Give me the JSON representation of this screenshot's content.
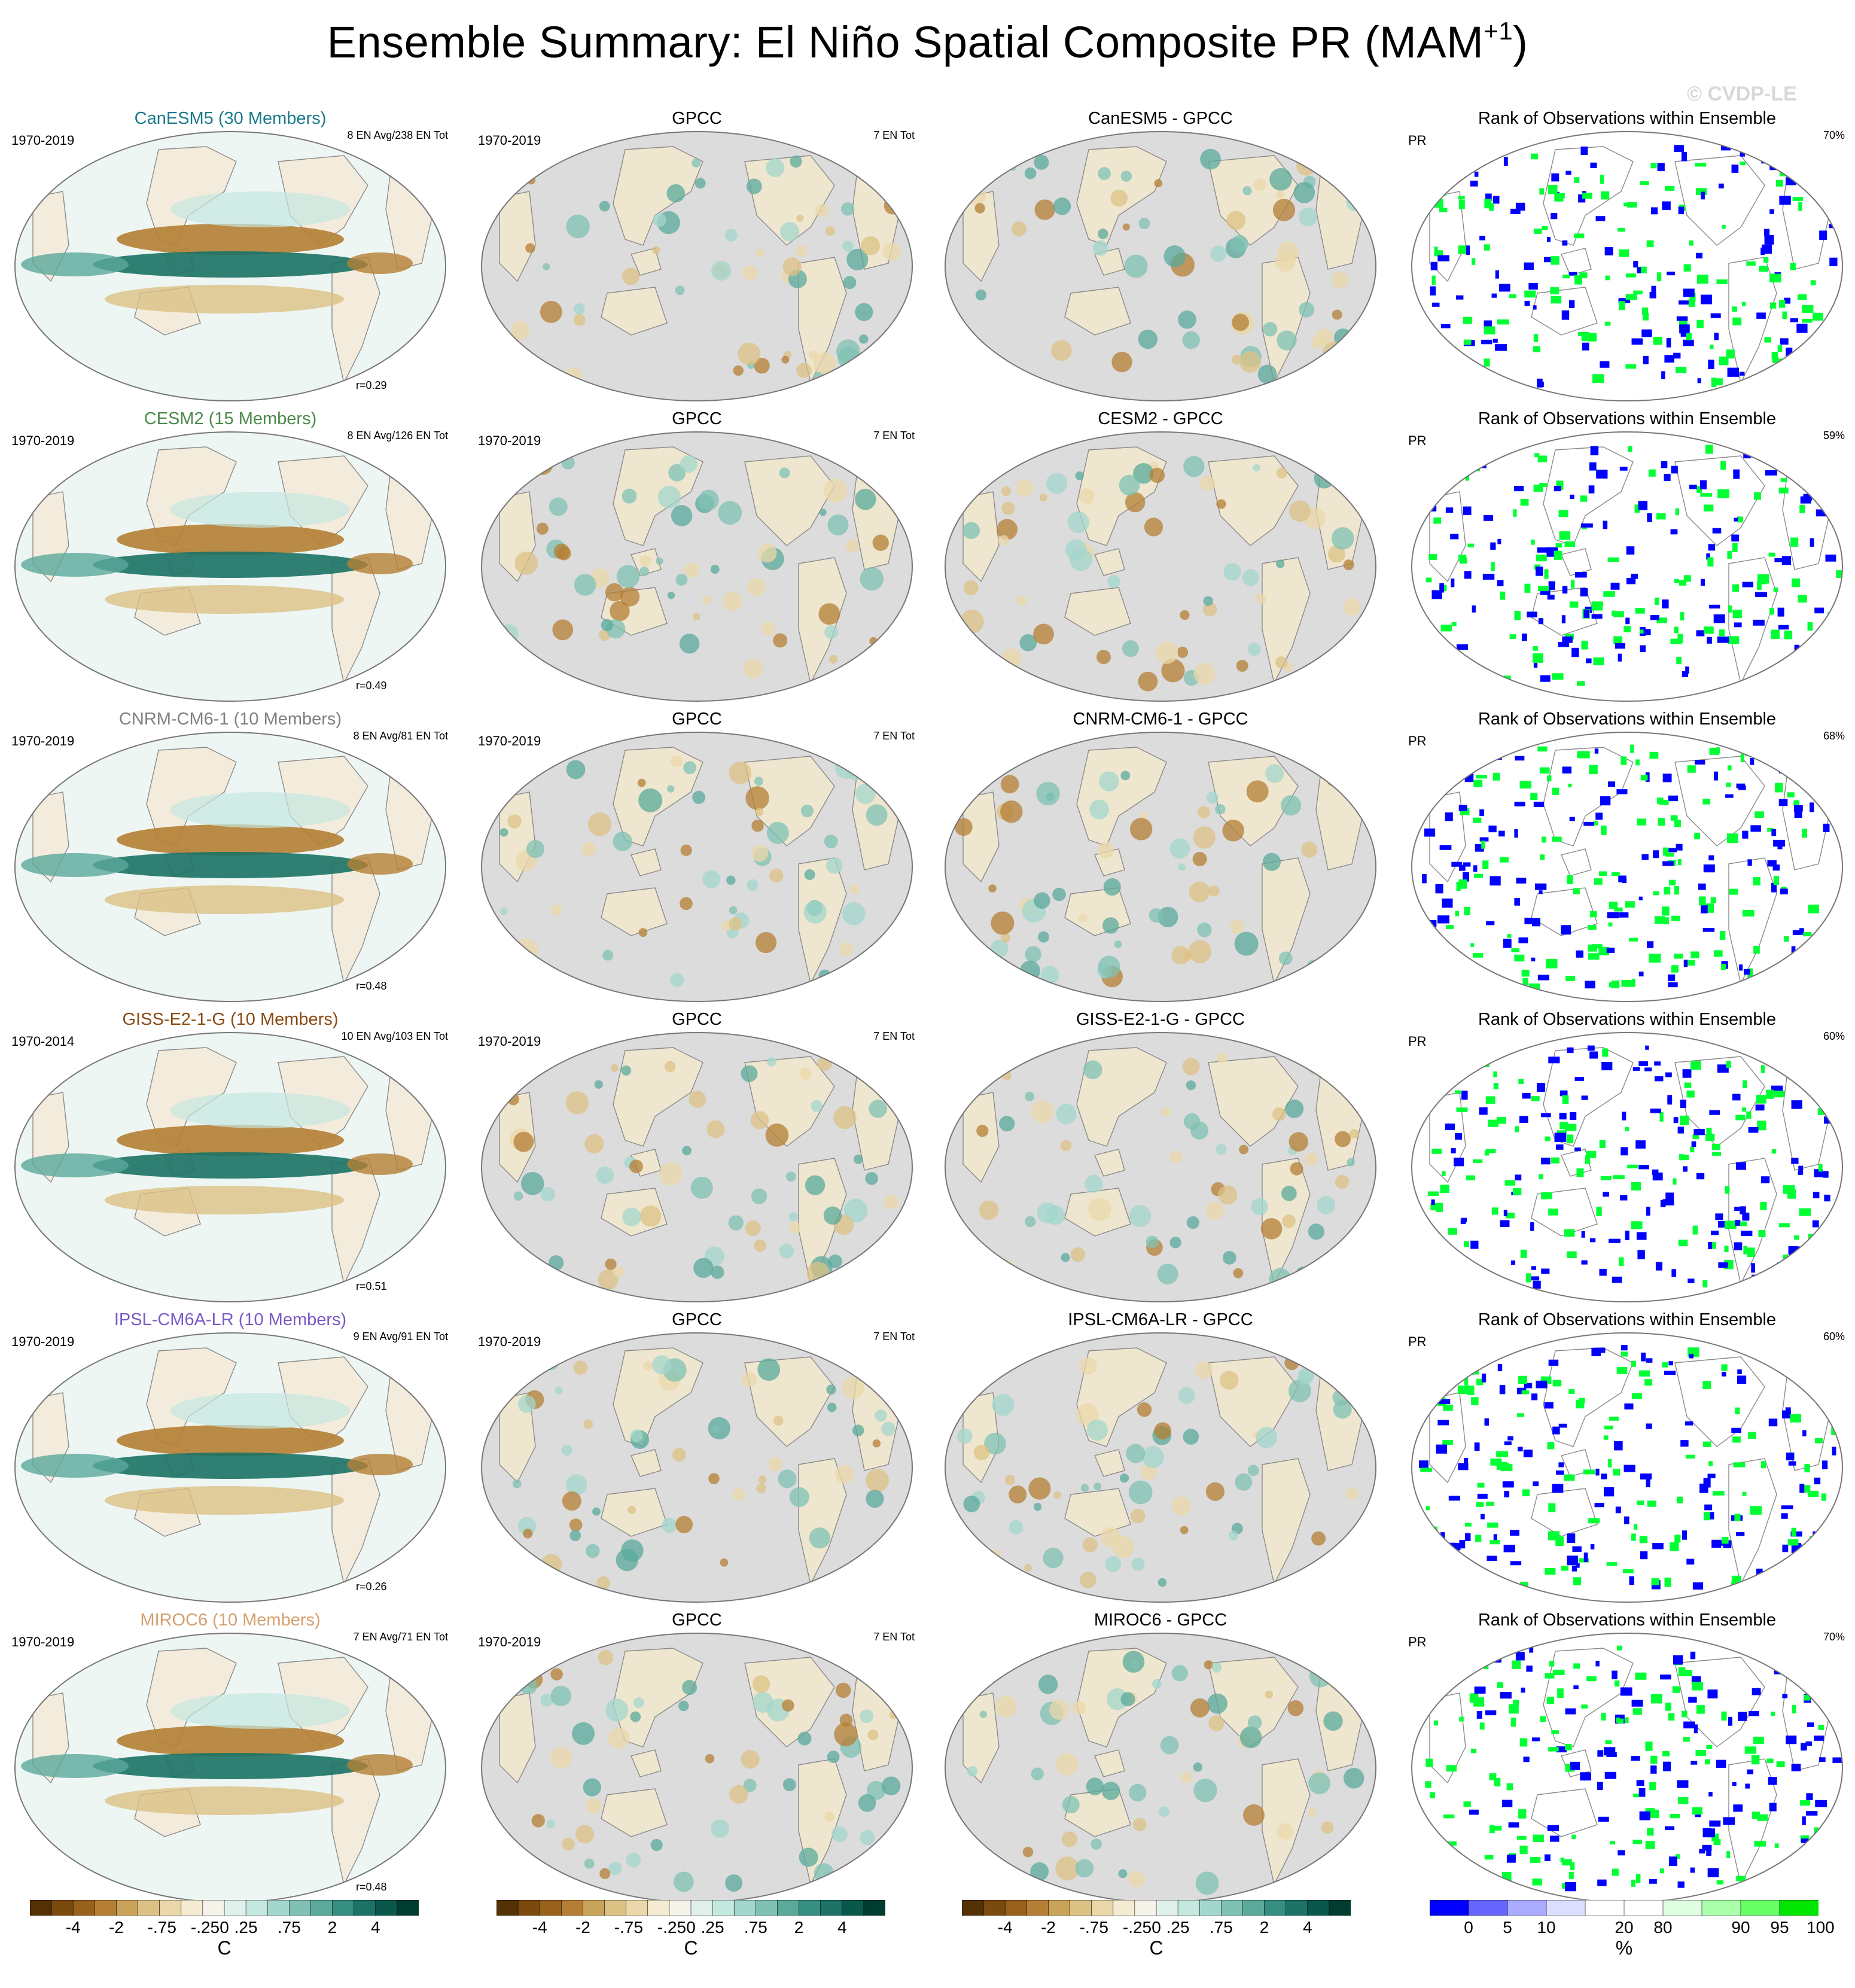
{
  "title": {
    "main": "Ensemble Summary: El Niño Spatial Composite PR (MAM",
    "sup": "+1",
    "close": ")"
  },
  "watermark": "© CVDP-LE",
  "rows": [
    {
      "model": "CanESM5 (30 Members)",
      "model_color": "#1a7a8a",
      "period": "1970-2019",
      "counts": "8 EN Avg/238 EN Tot",
      "corr": "r=0.29",
      "gpcc_title": "GPCC",
      "gpcc_period": "1970-2019",
      "gpcc_counts": "7 EN Tot",
      "diff_title": "CanESM5 - GPCC",
      "rank_title": "Rank of Observations within Ensemble",
      "rank_var": "PR",
      "rank_pct": "70%"
    },
    {
      "model": "CESM2 (15 Members)",
      "model_color": "#4a8a4a",
      "period": "1970-2019",
      "counts": "8 EN Avg/126 EN Tot",
      "corr": "r=0.49",
      "gpcc_title": "GPCC",
      "gpcc_period": "1970-2019",
      "gpcc_counts": "7 EN Tot",
      "diff_title": "CESM2 - GPCC",
      "rank_title": "Rank of Observations within Ensemble",
      "rank_var": "PR",
      "rank_pct": "59%"
    },
    {
      "model": "CNRM-CM6-1 (10 Members)",
      "model_color": "#808080",
      "period": "1970-2019",
      "counts": "8 EN Avg/81 EN Tot",
      "corr": "r=0.48",
      "gpcc_title": "GPCC",
      "gpcc_period": "1970-2019",
      "gpcc_counts": "7 EN Tot",
      "diff_title": "CNRM-CM6-1 - GPCC",
      "rank_title": "Rank of Observations within Ensemble",
      "rank_var": "PR",
      "rank_pct": "68%"
    },
    {
      "model": "GISS-E2-1-G (10 Members)",
      "model_color": "#8a4a10",
      "period": "1970-2014",
      "counts": "10 EN Avg/103 EN Tot",
      "corr": "r=0.51",
      "gpcc_title": "GPCC",
      "gpcc_period": "1970-2019",
      "gpcc_counts": "7 EN Tot",
      "diff_title": "GISS-E2-1-G - GPCC",
      "rank_title": "Rank of Observations within Ensemble",
      "rank_var": "PR",
      "rank_pct": "60%"
    },
    {
      "model": "IPSL-CM6A-LR (10 Members)",
      "model_color": "#7a5ac8",
      "period": "1970-2019",
      "counts": "9 EN Avg/91 EN Tot",
      "corr": "r=0.26",
      "gpcc_title": "GPCC",
      "gpcc_period": "1970-2019",
      "gpcc_counts": "7 EN Tot",
      "diff_title": "IPSL-CM6A-LR - GPCC",
      "rank_title": "Rank of Observations within Ensemble",
      "rank_var": "PR",
      "rank_pct": "60%"
    },
    {
      "model": "MIROC6 (10 Members)",
      "model_color": "#d4a070",
      "period": "1970-2019",
      "counts": "7 EN Avg/71 EN Tot",
      "corr": "r=0.48",
      "gpcc_title": "GPCC",
      "gpcc_period": "1970-2019",
      "gpcc_counts": "7 EN Tot",
      "diff_title": "MIROC6 - GPCC",
      "rank_title": "Rank of Observations within Ensemble",
      "rank_var": "PR",
      "rank_pct": "70%"
    }
  ],
  "colorbars": {
    "brbg": {
      "colors": [
        "#543005",
        "#7a4a0e",
        "#98621c",
        "#b47f34",
        "#c9a35a",
        "#dcc184",
        "#ebd8aa",
        "#f5ead2",
        "#f6f3ea",
        "#e0f1ec",
        "#c4e7df",
        "#a3d7cc",
        "#7fc1b3",
        "#5aa99b",
        "#368e80",
        "#1b7265",
        "#0a584b",
        "#003c30"
      ],
      "labels": [
        "-4",
        "-2",
        "-.75",
        "-.25",
        "0",
        ".25",
        ".75",
        "2",
        "4"
      ],
      "unit": "C"
    },
    "rank": {
      "colors": [
        "#0000ff",
        "#6666ff",
        "#aaaaff",
        "#ddddff",
        "#ffffff",
        "#ffffff",
        "#e0ffe0",
        "#aaffaa",
        "#66ff66",
        "#00e600"
      ],
      "labels": [
        "0",
        "5",
        "10",
        "20",
        "80",
        "90",
        "95",
        "100"
      ],
      "unit": "%"
    }
  }
}
